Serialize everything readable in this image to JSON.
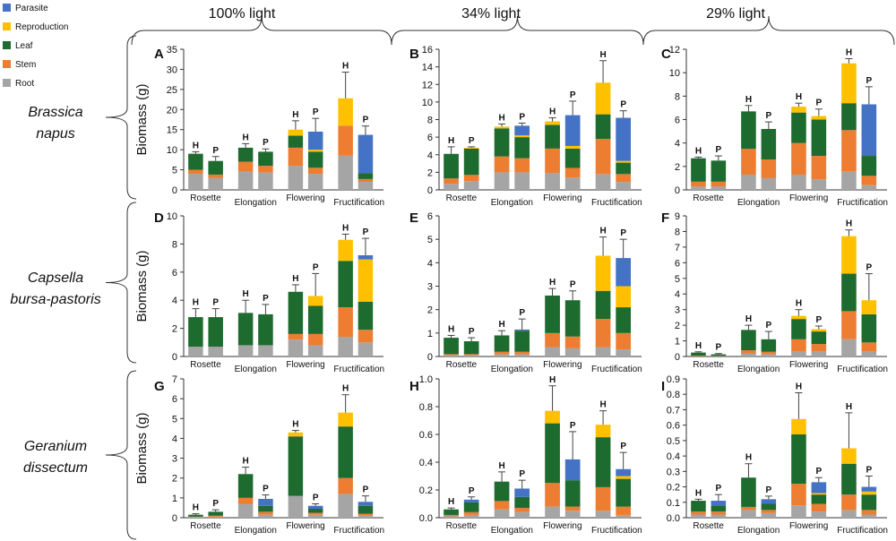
{
  "chart_data": {
    "type": "bar",
    "stacked": true,
    "legend": {
      "position": "top-left",
      "entries": [
        {
          "name": "Parasite",
          "color": "#4472C4"
        },
        {
          "name": "Reproduction",
          "color": "#FFC000"
        },
        {
          "name": "Leaf",
          "color": "#1E6B30"
        },
        {
          "name": "Stem",
          "color": "#ED7D31"
        },
        {
          "name": "Root",
          "color": "#A5A5A5"
        }
      ]
    },
    "stack_order": [
      "Root",
      "Stem",
      "Leaf",
      "Reproduction",
      "Parasite"
    ],
    "column_headers": [
      "100% light",
      "34% light",
      "29% light"
    ],
    "row_labels": [
      "Brassica napus",
      "Capsella bursa-pastoris",
      "Geranium dissectum"
    ],
    "ylabel": "Biomass (g)",
    "stage_labels": [
      "Rosette",
      "Elongation",
      "Flowering",
      "Fructification"
    ],
    "bar_labels": [
      "H",
      "P",
      "H",
      "P",
      "H",
      "P",
      "H",
      "P"
    ],
    "panels": [
      {
        "id": "A",
        "ylim": [
          0,
          35
        ],
        "yticks": [
          0,
          5,
          10,
          15,
          20,
          25,
          30,
          35
        ],
        "bars": [
          {
            "Root": 4,
            "Stem": 1,
            "Leaf": 4,
            "Reproduction": 0,
            "Parasite": 0,
            "err": 0.5
          },
          {
            "Root": 3,
            "Stem": 0.8,
            "Leaf": 3.4,
            "Reproduction": 0,
            "Parasite": 0,
            "err": 1.1
          },
          {
            "Root": 4.5,
            "Stem": 2.5,
            "Leaf": 3.5,
            "Reproduction": 0,
            "Parasite": 0,
            "err": 1
          },
          {
            "Root": 4.3,
            "Stem": 1.7,
            "Leaf": 3.5,
            "Reproduction": 0,
            "Parasite": 0,
            "err": 0.7
          },
          {
            "Root": 6,
            "Stem": 4.5,
            "Leaf": 3,
            "Reproduction": 1.5,
            "Parasite": 0,
            "err": 2.2
          },
          {
            "Root": 4,
            "Stem": 1.5,
            "Leaf": 4,
            "Reproduction": 0.5,
            "Parasite": 4.5,
            "err": 3.3
          },
          {
            "Root": 8.5,
            "Stem": 7.5,
            "Leaf": 0,
            "Reproduction": 6.8,
            "Parasite": 0,
            "err": 6.5
          },
          {
            "Root": 2,
            "Stem": 0.7,
            "Leaf": 1.5,
            "Reproduction": 0,
            "Parasite": 9.5,
            "err": 2.2
          }
        ]
      },
      {
        "id": "B",
        "ylim": [
          0,
          16
        ],
        "yticks": [
          0,
          2,
          4,
          6,
          8,
          10,
          12,
          14,
          16
        ],
        "bars": [
          {
            "Root": 0.7,
            "Stem": 0.6,
            "Leaf": 2.8,
            "Reproduction": 0,
            "Parasite": 0,
            "err": 0.8
          },
          {
            "Root": 1,
            "Stem": 0.7,
            "Leaf": 3,
            "Reproduction": 0.1,
            "Parasite": 0,
            "err": 0.1
          },
          {
            "Root": 2,
            "Stem": 1.8,
            "Leaf": 3.2,
            "Reproduction": 0.2,
            "Parasite": 0,
            "err": 0.3
          },
          {
            "Root": 2,
            "Stem": 1.6,
            "Leaf": 2.4,
            "Reproduction": 0.2,
            "Parasite": 1.1,
            "err": 0.3
          },
          {
            "Root": 1.9,
            "Stem": 2.8,
            "Leaf": 2.7,
            "Reproduction": 0.4,
            "Parasite": 0,
            "err": 0.4
          },
          {
            "Root": 1.4,
            "Stem": 1.1,
            "Leaf": 2.2,
            "Reproduction": 0.3,
            "Parasite": 3.5,
            "err": 1.6
          },
          {
            "Root": 1.8,
            "Stem": 4,
            "Leaf": 2.8,
            "Reproduction": 3.6,
            "Parasite": 0,
            "err": 2.5
          },
          {
            "Root": 0.9,
            "Stem": 0.9,
            "Leaf": 1.3,
            "Reproduction": 0.2,
            "Parasite": 4.9,
            "err": 0.8
          }
        ]
      },
      {
        "id": "C",
        "ylim": [
          0,
          12
        ],
        "yticks": [
          0,
          2,
          4,
          6,
          8,
          10,
          12
        ],
        "bars": [
          {
            "Root": 0.3,
            "Stem": 0.4,
            "Leaf": 2,
            "Reproduction": 0,
            "Parasite": 0,
            "err": 0.1
          },
          {
            "Root": 0.3,
            "Stem": 0.4,
            "Leaf": 1.8,
            "Reproduction": 0,
            "Parasite": 0,
            "err": 0.4
          },
          {
            "Root": 1.3,
            "Stem": 2.2,
            "Leaf": 3.2,
            "Reproduction": 0,
            "Parasite": 0,
            "err": 0.5
          },
          {
            "Root": 1,
            "Stem": 1.6,
            "Leaf": 2.6,
            "Reproduction": 0,
            "Parasite": 0,
            "err": 0.6
          },
          {
            "Root": 1.3,
            "Stem": 2.7,
            "Leaf": 2.6,
            "Reproduction": 0.5,
            "Parasite": 0,
            "err": 0.3
          },
          {
            "Root": 0.9,
            "Stem": 2,
            "Leaf": 3.1,
            "Reproduction": 0.3,
            "Parasite": 0,
            "err": 0.6
          },
          {
            "Root": 1.6,
            "Stem": 3.5,
            "Leaf": 2.3,
            "Reproduction": 3.4,
            "Parasite": 0,
            "err": 0.4
          },
          {
            "Root": 0.4,
            "Stem": 0.8,
            "Leaf": 1.7,
            "Reproduction": 0,
            "Parasite": 4.4,
            "err": 1.5
          }
        ]
      },
      {
        "id": "D",
        "ylim": [
          0,
          10
        ],
        "yticks": [
          0,
          2,
          4,
          6,
          8,
          10
        ],
        "bars": [
          {
            "Root": 0.7,
            "Stem": 0,
            "Leaf": 2.1,
            "Reproduction": 0,
            "Parasite": 0,
            "err": 0.6
          },
          {
            "Root": 0.7,
            "Stem": 0,
            "Leaf": 2.1,
            "Reproduction": 0,
            "Parasite": 0,
            "err": 0.6
          },
          {
            "Root": 0.8,
            "Stem": 0,
            "Leaf": 2.3,
            "Reproduction": 0,
            "Parasite": 0,
            "err": 0.9
          },
          {
            "Root": 0.8,
            "Stem": 0,
            "Leaf": 2.2,
            "Reproduction": 0,
            "Parasite": 0,
            "err": 0.7
          },
          {
            "Root": 1.2,
            "Stem": 0.4,
            "Leaf": 3,
            "Reproduction": 0,
            "Parasite": 0,
            "err": 0.5
          },
          {
            "Root": 0.8,
            "Stem": 0.8,
            "Leaf": 2,
            "Reproduction": 0.7,
            "Parasite": 0,
            "err": 1.6
          },
          {
            "Root": 1.4,
            "Stem": 2.1,
            "Leaf": 3.3,
            "Reproduction": 1.5,
            "Parasite": 0,
            "err": 0.4
          },
          {
            "Root": 1,
            "Stem": 0.9,
            "Leaf": 2,
            "Reproduction": 3,
            "Parasite": 0.3,
            "err": 1.2
          }
        ]
      },
      {
        "id": "E",
        "ylim": [
          0,
          6
        ],
        "yticks": [
          0,
          1,
          2,
          3,
          4,
          5,
          6
        ],
        "bars": [
          {
            "Root": 0.05,
            "Stem": 0.05,
            "Leaf": 0.7,
            "Reproduction": 0,
            "Parasite": 0,
            "err": 0.1
          },
          {
            "Root": 0.05,
            "Stem": 0.05,
            "Leaf": 0.55,
            "Reproduction": 0,
            "Parasite": 0,
            "err": 0.15
          },
          {
            "Root": 0.1,
            "Stem": 0.1,
            "Leaf": 0.7,
            "Reproduction": 0,
            "Parasite": 0,
            "err": 0.2
          },
          {
            "Root": 0.1,
            "Stem": 0.1,
            "Leaf": 0.9,
            "Reproduction": 0,
            "Parasite": 0.05,
            "err": 0.45
          },
          {
            "Root": 0.4,
            "Stem": 0.6,
            "Leaf": 1.6,
            "Reproduction": 0,
            "Parasite": 0,
            "err": 0.3
          },
          {
            "Root": 0.35,
            "Stem": 0.5,
            "Leaf": 1.55,
            "Reproduction": 0,
            "Parasite": 0,
            "err": 0.4
          },
          {
            "Root": 0.4,
            "Stem": 1.2,
            "Leaf": 1.2,
            "Reproduction": 1.5,
            "Parasite": 0,
            "err": 0.8
          },
          {
            "Root": 0.3,
            "Stem": 0.7,
            "Leaf": 1.1,
            "Reproduction": 0.9,
            "Parasite": 1.2,
            "err": 0.8
          }
        ]
      },
      {
        "id": "F",
        "ylim": [
          0,
          9
        ],
        "yticks": [
          0,
          1,
          2,
          3,
          4,
          5,
          6,
          7,
          8,
          9
        ],
        "bars": [
          {
            "Root": 0.02,
            "Stem": 0.03,
            "Leaf": 0.2,
            "Reproduction": 0,
            "Parasite": 0,
            "err": 0.05
          },
          {
            "Root": 0.02,
            "Stem": 0.02,
            "Leaf": 0.1,
            "Reproduction": 0,
            "Parasite": 0,
            "err": 0.05
          },
          {
            "Root": 0.2,
            "Stem": 0.2,
            "Leaf": 1.3,
            "Reproduction": 0,
            "Parasite": 0,
            "err": 0.3
          },
          {
            "Root": 0.15,
            "Stem": 0.15,
            "Leaf": 0.8,
            "Reproduction": 0,
            "Parasite": 0,
            "err": 0.5
          },
          {
            "Root": 0.3,
            "Stem": 0.8,
            "Leaf": 1.3,
            "Reproduction": 0.2,
            "Parasite": 0,
            "err": 0.4
          },
          {
            "Root": 0.3,
            "Stem": 0.5,
            "Leaf": 0.8,
            "Reproduction": 0.15,
            "Parasite": 0,
            "err": 0.2
          },
          {
            "Root": 1.1,
            "Stem": 1.8,
            "Leaf": 2.4,
            "Reproduction": 2.4,
            "Parasite": 0,
            "err": 0.4
          },
          {
            "Root": 0.3,
            "Stem": 0.6,
            "Leaf": 1.8,
            "Reproduction": 0.9,
            "Parasite": 0,
            "err": 1.7
          }
        ]
      },
      {
        "id": "G",
        "ylim": [
          0,
          7
        ],
        "yticks": [
          0,
          1,
          2,
          3,
          4,
          5,
          6,
          7
        ],
        "bars": [
          {
            "Root": 0.03,
            "Stem": 0.02,
            "Leaf": 0.1,
            "Reproduction": 0,
            "Parasite": 0,
            "err": 0.05
          },
          {
            "Root": 0.05,
            "Stem": 0.05,
            "Leaf": 0.2,
            "Reproduction": 0,
            "Parasite": 0,
            "err": 0.1
          },
          {
            "Root": 0.7,
            "Stem": 0.3,
            "Leaf": 1.2,
            "Reproduction": 0,
            "Parasite": 0,
            "err": 0.35
          },
          {
            "Root": 0.15,
            "Stem": 0.15,
            "Leaf": 0.3,
            "Reproduction": 0,
            "Parasite": 0.35,
            "err": 0.2
          },
          {
            "Root": 1.1,
            "Stem": 0,
            "Leaf": 3,
            "Reproduction": 0.2,
            "Parasite": 0,
            "err": 0.1
          },
          {
            "Root": 0.15,
            "Stem": 0.1,
            "Leaf": 0.2,
            "Reproduction": 0,
            "Parasite": 0.15,
            "err": 0.1
          },
          {
            "Root": 1.2,
            "Stem": 0.8,
            "Leaf": 2.6,
            "Reproduction": 0.7,
            "Parasite": 0,
            "err": 0.9
          },
          {
            "Root": 0.1,
            "Stem": 0.1,
            "Leaf": 0.4,
            "Reproduction": 0,
            "Parasite": 0.2,
            "err": 0.3
          }
        ]
      },
      {
        "id": "H",
        "ylim": [
          0,
          1.0
        ],
        "yticks": [
          0,
          0.2,
          0.4,
          0.6,
          0.8,
          1.0
        ],
        "bars": [
          {
            "Root": 0.01,
            "Stem": 0.01,
            "Leaf": 0.04,
            "Reproduction": 0,
            "Parasite": 0,
            "err": 0.01
          },
          {
            "Root": 0.02,
            "Stem": 0.02,
            "Leaf": 0.07,
            "Reproduction": 0,
            "Parasite": 0.02,
            "err": 0.02
          },
          {
            "Root": 0.06,
            "Stem": 0.06,
            "Leaf": 0.14,
            "Reproduction": 0,
            "Parasite": 0,
            "err": 0.07
          },
          {
            "Root": 0.04,
            "Stem": 0.03,
            "Leaf": 0.08,
            "Reproduction": 0,
            "Parasite": 0.06,
            "err": 0.06
          },
          {
            "Root": 0.08,
            "Stem": 0.17,
            "Leaf": 0.43,
            "Reproduction": 0.09,
            "Parasite": 0,
            "err": 0.18
          },
          {
            "Root": 0.05,
            "Stem": 0.03,
            "Leaf": 0.19,
            "Reproduction": 0,
            "Parasite": 0.15,
            "err": 0.2
          },
          {
            "Root": 0.05,
            "Stem": 0.17,
            "Leaf": 0.36,
            "Reproduction": 0.09,
            "Parasite": 0,
            "err": 0.1
          },
          {
            "Root": 0.02,
            "Stem": 0.06,
            "Leaf": 0.2,
            "Reproduction": 0.02,
            "Parasite": 0.05,
            "err": 0.12
          }
        ]
      },
      {
        "id": "I",
        "ylim": [
          0,
          0.9
        ],
        "yticks": [
          0,
          0.1,
          0.2,
          0.3,
          0.4,
          0.5,
          0.6,
          0.7,
          0.8,
          0.9
        ],
        "bars": [
          {
            "Root": 0.02,
            "Stem": 0.02,
            "Leaf": 0.07,
            "Reproduction": 0,
            "Parasite": 0,
            "err": 0.01
          },
          {
            "Root": 0.02,
            "Stem": 0.02,
            "Leaf": 0.04,
            "Reproduction": 0,
            "Parasite": 0.03,
            "err": 0.04
          },
          {
            "Root": 0.05,
            "Stem": 0.02,
            "Leaf": 0.19,
            "Reproduction": 0,
            "Parasite": 0,
            "err": 0.09
          },
          {
            "Root": 0.03,
            "Stem": 0.02,
            "Leaf": 0.04,
            "Reproduction": 0,
            "Parasite": 0.03,
            "err": 0.02
          },
          {
            "Root": 0.08,
            "Stem": 0.14,
            "Leaf": 0.32,
            "Reproduction": 0.1,
            "Parasite": 0,
            "err": 0.17
          },
          {
            "Root": 0.04,
            "Stem": 0.05,
            "Leaf": 0.06,
            "Reproduction": 0.01,
            "Parasite": 0.07,
            "err": 0.03
          },
          {
            "Root": 0.05,
            "Stem": 0.1,
            "Leaf": 0.2,
            "Reproduction": 0.1,
            "Parasite": 0,
            "err": 0.23
          },
          {
            "Root": 0.02,
            "Stem": 0.03,
            "Leaf": 0.1,
            "Reproduction": 0.02,
            "Parasite": 0.03,
            "err": 0.07
          }
        ]
      }
    ]
  }
}
